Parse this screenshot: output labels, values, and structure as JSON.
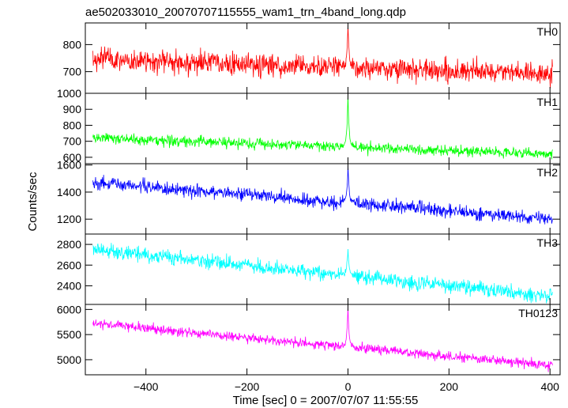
{
  "title": "ae502033010_20070707115555_wam1_trn_4band_long.qdp",
  "ylabel": "Counts/sec",
  "xlabel": "Time [sec] 0 = 2007/07/07 11:55:55",
  "chart_data": {
    "type": "line",
    "title": "ae502033010_20070707115555_wam1_trn_4band_long.qdp",
    "xlabel": "Time [sec] 0 = 2007/07/07 11:55:55",
    "ylabel": "Counts/sec",
    "xlim": [
      -520,
      420
    ],
    "x_ticks": [
      -400,
      -200,
      0,
      200,
      400
    ],
    "x_tick_labels": [
      "−400",
      "−200",
      "0",
      "200",
      "400"
    ],
    "grid": false,
    "panels": [
      {
        "name": "TH0",
        "color": "#ff0000",
        "ylim": [
          620,
          880
        ],
        "y_ticks": [
          700,
          800
        ],
        "y_tick_labels": [
          "700",
          "800"
        ],
        "start_level": 745,
        "end_level": 690,
        "noise_amplitude": 38,
        "spike_x": 0,
        "spike_peak": 880
      },
      {
        "name": "TH1",
        "color": "#00ff00",
        "ylim": [
          560,
          1000
        ],
        "y_ticks": [
          600,
          700,
          800,
          900,
          1000
        ],
        "y_tick_labels": [
          "600",
          "700",
          "800",
          "900",
          "1000"
        ],
        "start_level": 720,
        "end_level": 620,
        "noise_amplitude": 30,
        "spike_x": 0,
        "spike_peak": 995
      },
      {
        "name": "TH2",
        "color": "#0000ff",
        "ylim": [
          1090,
          1610
        ],
        "y_ticks": [
          1200,
          1400,
          1600
        ],
        "y_tick_labels": [
          "1200",
          "1400",
          "1600"
        ],
        "start_level": 1470,
        "end_level": 1200,
        "noise_amplitude": 45,
        "spike_x": 0,
        "spike_peak": 1600
      },
      {
        "name": "TH3",
        "color": "#00ffff",
        "ylim": [
          2220,
          2900
        ],
        "y_ticks": [
          2400,
          2600,
          2800
        ],
        "y_tick_labels": [
          "2400",
          "2600",
          "2800"
        ],
        "start_level": 2750,
        "end_level": 2300,
        "noise_amplitude": 65,
        "spike_x": 0,
        "spike_peak": 2760
      },
      {
        "name": "TH0123",
        "color": "#ff00ff",
        "ylim": [
          4700,
          6100
        ],
        "y_ticks": [
          5000,
          5500,
          6000
        ],
        "y_tick_labels": [
          "5000",
          "5500",
          "6000"
        ],
        "start_level": 5720,
        "end_level": 4880,
        "noise_amplitude": 90,
        "spike_x": 0,
        "spike_peak": 6060
      }
    ]
  }
}
